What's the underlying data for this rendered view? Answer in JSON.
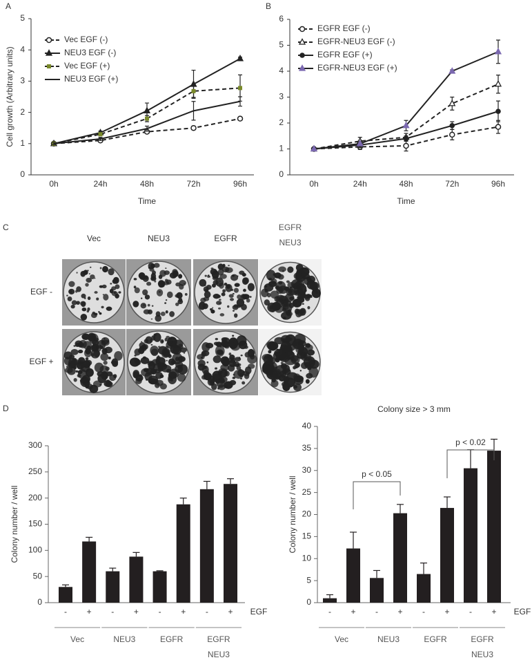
{
  "panel_c": {
    "label": "C",
    "columns": [
      "Vec",
      "NEU3",
      "EGFR",
      "EGFR NEU3"
    ],
    "rows": [
      "EGF -",
      "EGF +"
    ]
  },
  "chart_data": [
    {
      "type": "line",
      "panel": "A",
      "ylabel": "Cell growth (Arbitrary units)",
      "xlabel": "Time",
      "categories": [
        "0h",
        "24h",
        "48h",
        "72h",
        "96h"
      ],
      "ylim": [
        0,
        5
      ],
      "yticks": [
        0,
        1,
        2,
        3,
        4,
        5
      ],
      "series": [
        {
          "name": "Vec EGF (-)",
          "color": "#222222",
          "marker_color": "#222222",
          "marker": "open-circle",
          "dash": true,
          "values": [
            1,
            1.1,
            1.38,
            1.5,
            1.8
          ],
          "errors": [
            0.03,
            0.04,
            0.05,
            0.06,
            0.05
          ]
        },
        {
          "name": "NEU3 EGF (-)",
          "color": "#222222",
          "marker_color": "#222222",
          "marker": "triangle",
          "dash": false,
          "values": [
            1,
            1.35,
            2.05,
            2.9,
            3.72
          ],
          "errors": [
            0.03,
            0.05,
            0.25,
            0.45,
            0.05
          ]
        },
        {
          "name": "Vec EGF (+)",
          "color": "#222222",
          "marker_color": "#7a8a2a",
          "marker": "square",
          "dash": true,
          "values": [
            1,
            1.3,
            1.8,
            2.68,
            2.78
          ],
          "errors": [
            0.03,
            0.05,
            0.1,
            0.2,
            0.42
          ]
        },
        {
          "name": "NEU3 EGF (+)",
          "color": "#222222",
          "marker_color": "#222222",
          "marker": "none",
          "dash": false,
          "values": [
            1,
            1.15,
            1.48,
            2.05,
            2.35
          ],
          "errors": [
            0.03,
            0.05,
            0.08,
            0.3,
            0.15
          ]
        }
      ]
    },
    {
      "type": "line",
      "panel": "B",
      "xlabel": "Time",
      "categories": [
        "0h",
        "24h",
        "48h",
        "72h",
        "96h"
      ],
      "ylim": [
        0,
        6
      ],
      "yticks": [
        0,
        1,
        2,
        3,
        4,
        5,
        6
      ],
      "series": [
        {
          "name": "EGFR EGF (-)",
          "color": "#222222",
          "marker_color": "#222222",
          "marker": "open-circle",
          "dash": true,
          "values": [
            1,
            1.08,
            1.12,
            1.55,
            1.85
          ],
          "errors": [
            0.05,
            0.1,
            0.2,
            0.2,
            0.25
          ]
        },
        {
          "name": "EGFR-NEU3 EGF (-)",
          "color": "#222222",
          "marker_color": "#222222",
          "marker": "open-triangle",
          "dash": true,
          "values": [
            1,
            1.3,
            1.45,
            2.75,
            3.5
          ],
          "errors": [
            0.05,
            0.15,
            0.15,
            0.25,
            0.35
          ]
        },
        {
          "name": "EGFR EGF (+)",
          "color": "#222222",
          "marker_color": "#222222",
          "marker": "filled-circle",
          "dash": false,
          "values": [
            1,
            1.15,
            1.4,
            1.9,
            2.45
          ],
          "errors": [
            0.05,
            0.1,
            0.1,
            0.15,
            0.4
          ]
        },
        {
          "name": "EGFR-NEU3 EGF (+)",
          "color": "#222222",
          "marker_color": "#7b68b0",
          "marker": "triangle",
          "dash": false,
          "values": [
            1,
            1.2,
            1.9,
            4.0,
            4.75
          ],
          "errors": [
            0.05,
            0.1,
            0.2,
            0.05,
            0.45
          ]
        }
      ]
    },
    {
      "type": "bar",
      "panel": "D",
      "ylabel": "Colony number / well",
      "color": "#231f20",
      "categories": [
        "-",
        "+",
        "-",
        "+",
        "-",
        "+",
        "-",
        "+"
      ],
      "groups": [
        "Vec",
        "NEU3",
        "EGFR",
        "EGFR NEU3"
      ],
      "group_axis_label": "EGF",
      "values": [
        30,
        117,
        60,
        88,
        60,
        188,
        217,
        227
      ],
      "errors": [
        4,
        8,
        6,
        8,
        1,
        12,
        15,
        10
      ],
      "ylim": [
        0,
        300
      ],
      "yticks": [
        0,
        50,
        100,
        150,
        200,
        250,
        300
      ]
    },
    {
      "type": "bar",
      "title": "Colony size > 3 mm",
      "ylabel": "Colony number / well",
      "color": "#231f20",
      "categories": [
        "-",
        "+",
        "-",
        "+",
        "-",
        "+",
        "-",
        "+"
      ],
      "groups": [
        "Vec",
        "NEU3",
        "EGFR",
        "EGFR NEU3"
      ],
      "group_axis_label": "EGF",
      "values": [
        1,
        12.3,
        5.6,
        20.3,
        6.5,
        21.5,
        30.5,
        34.5
      ],
      "errors": [
        0.8,
        3.7,
        1.7,
        2,
        2.5,
        2.5,
        4.2,
        2.6
      ],
      "ylim": [
        0,
        40
      ],
      "yticks": [
        0,
        5,
        10,
        15,
        20,
        25,
        30,
        35,
        40
      ],
      "annotations": [
        "p < 0.05",
        "p < 0.02"
      ]
    }
  ]
}
